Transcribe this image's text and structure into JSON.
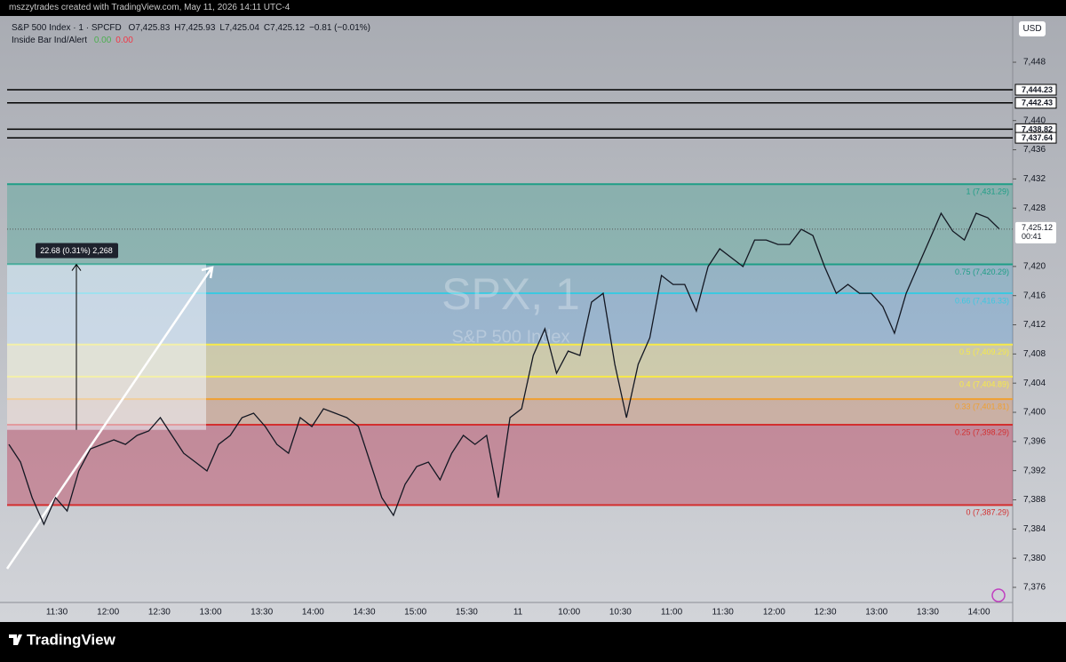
{
  "header": "mszzytrades created with TradingView.com, May 11, 2026 14:11 UTC-4",
  "footer": "TradingView",
  "chart_data": {
    "type": "line",
    "symbol": "S&P 500 Index · 1 · SPCFD",
    "ohlc": [
      "O7,425.83",
      "H7,425.93",
      "L7,425.04",
      "C7,425.12"
    ],
    "change": "−0.81 (−0.01%)",
    "indicator": {
      "name": "Inside Bar Ind/Alert",
      "values": [
        "0.00",
        "0.00"
      ],
      "colors": [
        "#4caf50",
        "#f23645"
      ]
    },
    "currency": "USD",
    "watermark": [
      "SPX, 1",
      "S&P 500 Index"
    ],
    "series": [
      {
        "color": "#131722",
        "values": [
          7395.61,
          7393.18,
          7388.3,
          7384.65,
          7388.3,
          7386.47,
          7391.96,
          7395.0,
          7395.61,
          7396.22,
          7395.61,
          7396.83,
          7397.44,
          7399.27,
          7396.83,
          7394.39,
          7393.18,
          7391.96,
          7395.61,
          7396.83,
          7399.27,
          7399.88,
          7398.05,
          7395.61,
          7394.39,
          7399.27,
          7398.05,
          7400.49,
          7399.88,
          7399.27,
          7398.05,
          7393.18,
          7388.3,
          7385.87,
          7390.13,
          7392.57,
          7393.18,
          7390.74,
          7394.39,
          7396.83,
          7395.61,
          7396.83,
          7388.3,
          7399.27,
          7400.49,
          7407.8,
          7411.45,
          7405.36,
          7408.4,
          7407.8,
          7415.11,
          7416.32,
          7406.58,
          7399.27,
          7406.58,
          7410.23,
          7418.76,
          7417.54,
          7417.54,
          7413.89,
          7419.98,
          7422.42,
          7421.2,
          7419.98,
          7423.63,
          7423.63,
          7423.02,
          7423.02,
          7425.1,
          7424.24,
          7419.98,
          7416.32,
          7417.54,
          7416.32,
          7416.32,
          7414.5,
          7410.84,
          7416.32,
          7419.98,
          7423.63,
          7427.29,
          7424.85,
          7423.63,
          7427.29,
          7426.68,
          7425.12
        ]
      }
    ],
    "last_price": {
      "value": 7425.12,
      "label": "7,425.12"
    },
    "countdown": "00:41",
    "ylim": [
      7373.93,
      7454.34
    ],
    "yticks": [
      {
        "value": 7376,
        "label": "7,376"
      },
      {
        "value": 7380,
        "label": "7,380"
      },
      {
        "value": 7384,
        "label": "7,384"
      },
      {
        "value": 7388,
        "label": "7,388"
      },
      {
        "value": 7392,
        "label": "7,392"
      },
      {
        "value": 7396,
        "label": "7,396"
      },
      {
        "value": 7400,
        "label": "7,400"
      },
      {
        "value": 7404,
        "label": "7,404"
      },
      {
        "value": 7408,
        "label": "7,408"
      },
      {
        "value": 7412,
        "label": "7,412"
      },
      {
        "value": 7416,
        "label": "7,416"
      },
      {
        "value": 7420,
        "label": "7,420"
      },
      {
        "value": 7428,
        "label": "7,428"
      },
      {
        "value": 7432,
        "label": "7,432"
      },
      {
        "value": 7436,
        "label": "7,436"
      },
      {
        "value": 7440,
        "label": "7,440"
      },
      {
        "value": 7448,
        "label": "7,448"
      }
    ],
    "time_labels": [
      "11:30",
      "12:00",
      "12:30",
      "13:00",
      "13:30",
      "14:00",
      "14:30",
      "15:00",
      "15:30",
      "11",
      "10:00",
      "10:30",
      "11:00",
      "11:30",
      "12:00",
      "12:30",
      "13:00",
      "13:30",
      "14:00"
    ],
    "levels": [
      {
        "label": "1 (7,431.29)",
        "value": 7431.29,
        "color": "#1e9e86",
        "fill": "rgba(30,158,134,0.28)"
      },
      {
        "label": "0.75 (7,420.29)",
        "value": 7420.29,
        "color": "#1e9e86",
        "fill": "rgba(40,150,200,0.25)"
      },
      {
        "label": "0.66 (7,416.33)",
        "value": 7416.33,
        "color": "#3cc8e0",
        "fill": "rgba(33,140,230,0.22)"
      },
      {
        "label": "0.5 (7,409.29)",
        "value": 7409.29,
        "color": "#f7ea48",
        "fill": "rgba(255,230,60,0.2)"
      },
      {
        "label": "0.4 (7,404.89)",
        "value": 7404.89,
        "color": "#f7ea48",
        "fill": "rgba(255,170,60,0.22)"
      },
      {
        "label": "0.33 (7,401.81)",
        "value": 7401.81,
        "color": "#f0a030",
        "fill": "rgba(220,120,60,0.28)"
      },
      {
        "label": "0.25 (7,398.29)",
        "value": 7398.29,
        "color": "#d32f2f",
        "fill": "rgba(190,40,70,0.38)"
      },
      {
        "label": "0 (7,387.29)",
        "value": 7387.29,
        "color": "#d32f2f"
      }
    ],
    "hlines": [
      {
        "value": 7444.23,
        "label": "7,444.23"
      },
      {
        "value": 7442.43,
        "label": "7,442.43"
      },
      {
        "value": 7438.82,
        "label": "7,438.82"
      },
      {
        "value": 7437.64,
        "label": "7,437.64"
      }
    ],
    "measure": {
      "label": "22.68 (0.31%) 2,268",
      "from": 7397.6,
      "to": 7420.28
    }
  }
}
